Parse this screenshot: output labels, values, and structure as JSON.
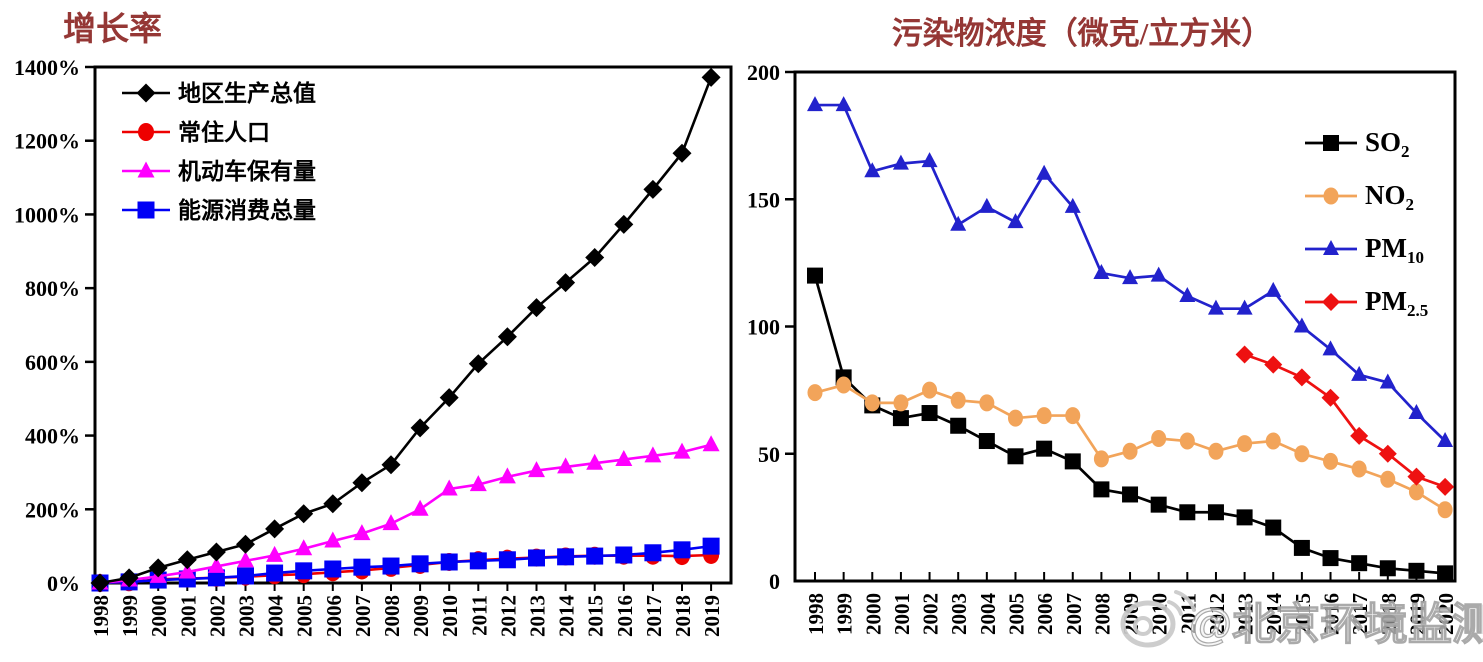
{
  "figure": {
    "background": "#ffffff",
    "title_color": "#953735",
    "axis_color": "#000000"
  },
  "watermark": {
    "icon": "weibo-icon",
    "text": "@北京环境监测",
    "color": "#c9c9c9"
  },
  "chart_data": [
    {
      "type": "line",
      "title": "增长率",
      "ylabel": "",
      "xlabel": "",
      "ylim": [
        0,
        1400
      ],
      "ytick_step": 200,
      "ytick_labels": [
        "0%",
        "200%",
        "400%",
        "600%",
        "800%",
        "1000%",
        "1200%",
        "1400%"
      ],
      "grid": false,
      "legend_position": "top-left",
      "x": [
        "1998",
        "1999",
        "2000",
        "2001",
        "2002",
        "2003",
        "2004",
        "2005",
        "2006",
        "2007",
        "2008",
        "2009",
        "2010",
        "2011",
        "2012",
        "2013",
        "2014",
        "2015",
        "2016",
        "2017",
        "2018",
        "2019"
      ],
      "series": [
        {
          "name": "地区生产总值",
          "marker": "diamond",
          "color": "#000000",
          "values": [
            0,
            14,
            41,
            63,
            84,
            105,
            147,
            188,
            215,
            272,
            321,
            421,
            503,
            595,
            668,
            747,
            815,
            883,
            973,
            1068,
            1166,
            1372
          ]
        },
        {
          "name": "常住人口",
          "marker": "circle",
          "color": "#EE0000",
          "values": [
            0,
            2,
            10,
            12,
            14,
            17,
            21,
            24,
            29,
            34,
            41,
            49,
            57,
            62,
            66,
            69,
            72,
            74,
            74,
            74,
            73,
            76
          ]
        },
        {
          "name": "机动车保有量",
          "marker": "triangle",
          "color": "#FF00FF",
          "values": [
            0,
            8,
            18,
            30,
            45,
            60,
            75,
            93,
            114,
            134,
            161,
            200,
            255,
            267,
            288,
            305,
            315,
            325,
            335,
            345,
            355,
            375
          ]
        },
        {
          "name": "能源消费总量",
          "marker": "square",
          "color": "#0000F5",
          "values": [
            0,
            3,
            8,
            11,
            14,
            19,
            27,
            33,
            38,
            43,
            46,
            52,
            57,
            60,
            63,
            68,
            71,
            73,
            76,
            82,
            90,
            100
          ]
        }
      ]
    },
    {
      "type": "line",
      "title": "污染物浓度（微克/立方米）",
      "ylabel": "",
      "xlabel": "",
      "ylim": [
        0,
        200
      ],
      "ytick_step": 50,
      "ytick_labels": [
        "0",
        "50",
        "100",
        "150",
        "200"
      ],
      "grid": false,
      "legend_position": "top-right",
      "x": [
        "1998",
        "1999",
        "2000",
        "2001",
        "2002",
        "2003",
        "2004",
        "2005",
        "2006",
        "2007",
        "2008",
        "2009",
        "2010",
        "2011",
        "2012",
        "2013",
        "2014",
        "2015",
        "2016",
        "2017",
        "2018",
        "2019",
        "2020"
      ],
      "series": [
        {
          "name": "SO2",
          "label_main": "SO",
          "label_sub": "2",
          "marker": "square",
          "color": "#000000",
          "values": [
            120,
            80,
            69,
            64,
            66,
            61,
            55,
            49,
            52,
            47,
            36,
            34,
            30,
            27,
            27,
            25,
            21,
            13,
            9,
            7,
            5,
            4,
            3
          ]
        },
        {
          "name": "NO2",
          "label_main": "NO",
          "label_sub": "2",
          "marker": "circle",
          "color": "#F2A45A",
          "values": [
            74,
            77,
            70,
            70,
            75,
            71,
            70,
            64,
            65,
            65,
            48,
            51,
            56,
            55,
            51,
            54,
            55,
            50,
            47,
            44,
            40,
            35,
            28
          ]
        },
        {
          "name": "PM10",
          "label_main": "PM",
          "label_sub": "10",
          "marker": "triangle",
          "color": "#2222CC",
          "values": [
            187,
            187,
            161,
            164,
            165,
            140,
            147,
            141,
            160,
            147,
            121,
            119,
            120,
            112,
            107,
            107,
            114,
            100,
            91,
            81,
            78,
            66,
            55
          ]
        },
        {
          "name": "PM2.5",
          "label_main": "PM",
          "label_sub": "2.5",
          "marker": "diamond",
          "color": "#EE1111",
          "values": [
            null,
            null,
            null,
            null,
            null,
            null,
            null,
            null,
            null,
            null,
            null,
            null,
            null,
            null,
            null,
            89,
            85,
            80,
            72,
            57,
            50,
            41,
            37
          ]
        }
      ]
    }
  ]
}
